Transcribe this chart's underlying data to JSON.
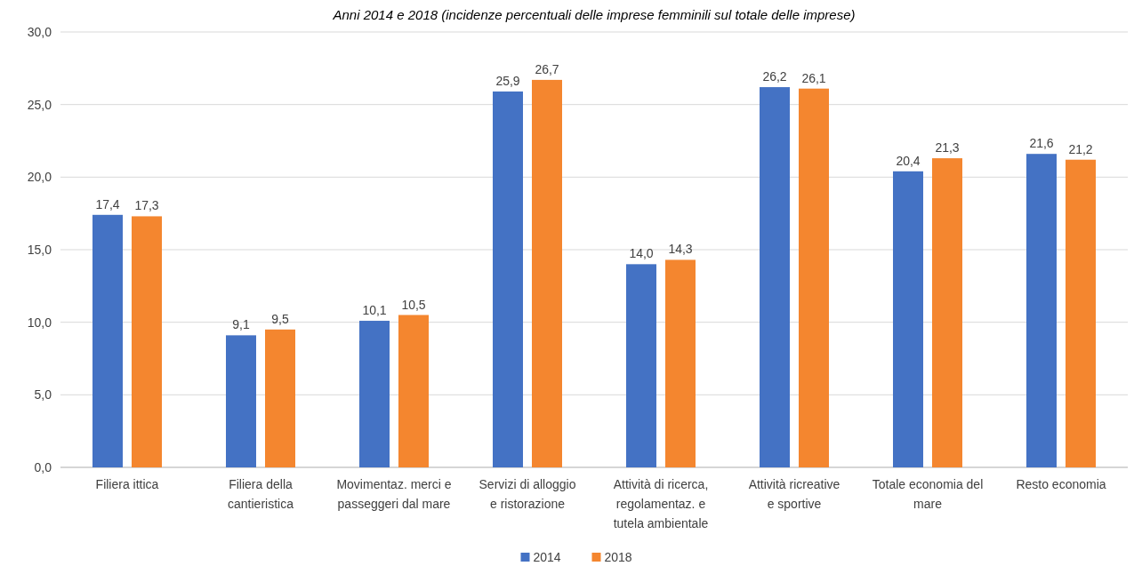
{
  "chart_data": {
    "type": "bar",
    "title": "Anni 2014 e 2018 (incidenze percentuali delle imprese femminili sul totale delle imprese)",
    "categories": [
      "Filiera ittica",
      "Filiera della cantieristica",
      "Movimentaz. merci e passeggeri dal mare",
      "Servizi di alloggio e ristorazione",
      "Attività di ricerca, regolamentaz. e tutela ambientale",
      "Attività ricreative e sportive",
      "Totale economia del mare",
      "Resto economia"
    ],
    "series": [
      {
        "name": "2014",
        "color": "#4472c4",
        "values": [
          17.4,
          9.1,
          10.1,
          25.9,
          14.0,
          26.2,
          20.4,
          21.6
        ],
        "value_labels": [
          "17,4",
          "9,1",
          "10,1",
          "25,9",
          "14,0",
          "26,2",
          "20,4",
          "21,6"
        ]
      },
      {
        "name": "2018",
        "color": "#f4862f",
        "values": [
          17.3,
          9.5,
          10.5,
          26.7,
          14.3,
          26.1,
          21.3,
          21.2
        ],
        "value_labels": [
          "17,3",
          "9,5",
          "10,5",
          "26,7",
          "14,3",
          "26,1",
          "21,3",
          "21,2"
        ]
      }
    ],
    "ylim": [
      0,
      30
    ],
    "yticks": [
      {
        "value": 0,
        "label": "0,0"
      },
      {
        "value": 5,
        "label": "5,0"
      },
      {
        "value": 10,
        "label": "10,0"
      },
      {
        "value": 15,
        "label": "15,0"
      },
      {
        "value": 20,
        "label": "20,0"
      },
      {
        "value": 25,
        "label": "25,0"
      },
      {
        "value": 30,
        "label": "30,0"
      }
    ],
    "grid": "y",
    "legend": "bottom"
  }
}
